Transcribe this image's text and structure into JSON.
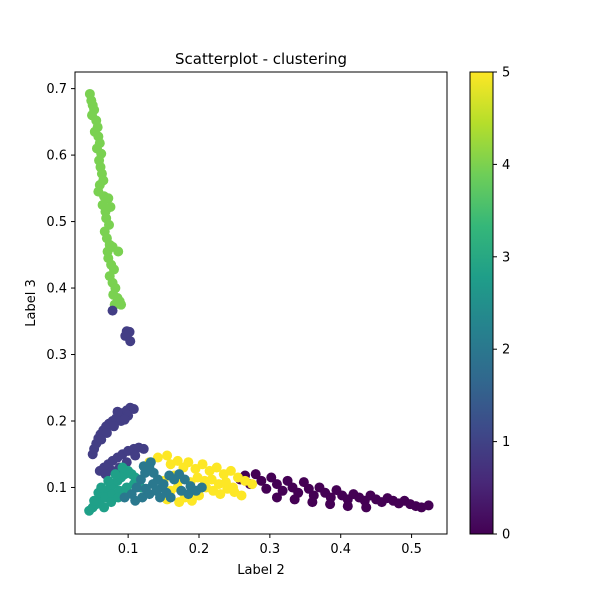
{
  "chart_data": {
    "type": "scatter",
    "title": "Scatterplot - clustering",
    "xlabel": "Label 2",
    "ylabel": "Label 3",
    "xlim": [
      0.025,
      0.55
    ],
    "ylim": [
      0.03,
      0.725
    ],
    "xticks": [
      0.1,
      0.2,
      0.3,
      0.4,
      0.5
    ],
    "xtick_labels": [
      "0.1",
      "0.2",
      "0.3",
      "0.4",
      "0.5"
    ],
    "yticks": [
      0.1,
      0.2,
      0.3,
      0.4,
      0.5,
      0.6,
      0.7
    ],
    "ytick_labels": [
      "0.1",
      "0.2",
      "0.3",
      "0.4",
      "0.5",
      "0.6",
      "0.7"
    ],
    "grid": false,
    "colorbar": {
      "colormap": "viridis",
      "range": [
        0,
        5
      ],
      "ticks": [
        0,
        1,
        2,
        3,
        4,
        5
      ],
      "tick_labels": [
        "0",
        "1",
        "2",
        "3",
        "4",
        "5"
      ],
      "stops": [
        "#440154",
        "#482878",
        "#3e4989",
        "#31688e",
        "#26828e",
        "#1f9e89",
        "#35b779",
        "#6ece58",
        "#b5de2b",
        "#fde725"
      ]
    },
    "clusters": [
      {
        "cluster": 4,
        "color": "#7ad151",
        "points": [
          [
            0.046,
            0.692
          ],
          [
            0.048,
            0.682
          ],
          [
            0.05,
            0.675
          ],
          [
            0.052,
            0.668
          ],
          [
            0.049,
            0.66
          ],
          [
            0.055,
            0.652
          ],
          [
            0.057,
            0.642
          ],
          [
            0.053,
            0.635
          ],
          [
            0.058,
            0.628
          ],
          [
            0.06,
            0.618
          ],
          [
            0.056,
            0.61
          ],
          [
            0.062,
            0.602
          ],
          [
            0.059,
            0.592
          ],
          [
            0.061,
            0.582
          ],
          [
            0.063,
            0.572
          ],
          [
            0.065,
            0.562
          ],
          [
            0.06,
            0.555
          ],
          [
            0.058,
            0.545
          ],
          [
            0.066,
            0.538
          ],
          [
            0.072,
            0.535
          ],
          [
            0.064,
            0.525
          ],
          [
            0.068,
            0.515
          ],
          [
            0.075,
            0.522
          ],
          [
            0.069,
            0.505
          ],
          [
            0.073,
            0.495
          ],
          [
            0.067,
            0.485
          ],
          [
            0.07,
            0.475
          ],
          [
            0.074,
            0.465
          ],
          [
            0.071,
            0.455
          ],
          [
            0.078,
            0.462
          ],
          [
            0.086,
            0.455
          ],
          [
            0.072,
            0.445
          ],
          [
            0.076,
            0.435
          ],
          [
            0.08,
            0.428
          ],
          [
            0.074,
            0.418
          ],
          [
            0.078,
            0.408
          ],
          [
            0.082,
            0.4
          ],
          [
            0.079,
            0.39
          ],
          [
            0.085,
            0.385
          ],
          [
            0.081,
            0.375
          ],
          [
            0.088,
            0.38
          ],
          [
            0.09,
            0.375
          ]
        ]
      },
      {
        "cluster": 1,
        "color": "#433e85",
        "points": [
          [
            0.078,
            0.366
          ],
          [
            0.098,
            0.335
          ],
          [
            0.102,
            0.334
          ],
          [
            0.096,
            0.328
          ],
          [
            0.103,
            0.32
          ],
          [
            0.05,
            0.15
          ],
          [
            0.052,
            0.158
          ],
          [
            0.055,
            0.166
          ],
          [
            0.058,
            0.174
          ],
          [
            0.061,
            0.18
          ],
          [
            0.065,
            0.186
          ],
          [
            0.069,
            0.192
          ],
          [
            0.073,
            0.196
          ],
          [
            0.078,
            0.2
          ],
          [
            0.083,
            0.204
          ],
          [
            0.088,
            0.208
          ],
          [
            0.093,
            0.212
          ],
          [
            0.098,
            0.216
          ],
          [
            0.103,
            0.22
          ],
          [
            0.108,
            0.218
          ],
          [
            0.1,
            0.208
          ],
          [
            0.09,
            0.2
          ],
          [
            0.08,
            0.192
          ],
          [
            0.07,
            0.182
          ],
          [
            0.062,
            0.172
          ],
          [
            0.085,
            0.214
          ],
          [
            0.095,
            0.202
          ],
          [
            0.06,
            0.125
          ],
          [
            0.066,
            0.13
          ],
          [
            0.072,
            0.135
          ],
          [
            0.078,
            0.14
          ],
          [
            0.085,
            0.145
          ],
          [
            0.092,
            0.15
          ],
          [
            0.1,
            0.155
          ],
          [
            0.108,
            0.158
          ],
          [
            0.115,
            0.16
          ],
          [
            0.122,
            0.158
          ],
          [
            0.11,
            0.148
          ],
          [
            0.098,
            0.138
          ],
          [
            0.088,
            0.13
          ],
          [
            0.078,
            0.125
          ],
          [
            0.068,
            0.12
          ]
        ]
      },
      {
        "cluster": 0,
        "color": "#440154",
        "points": [
          [
            0.258,
            0.112
          ],
          [
            0.265,
            0.118
          ],
          [
            0.272,
            0.105
          ],
          [
            0.28,
            0.12
          ],
          [
            0.288,
            0.11
          ],
          [
            0.295,
            0.098
          ],
          [
            0.302,
            0.115
          ],
          [
            0.31,
            0.105
          ],
          [
            0.318,
            0.095
          ],
          [
            0.325,
            0.11
          ],
          [
            0.332,
            0.1
          ],
          [
            0.34,
            0.092
          ],
          [
            0.348,
            0.108
          ],
          [
            0.355,
            0.098
          ],
          [
            0.362,
            0.088
          ],
          [
            0.37,
            0.1
          ],
          [
            0.378,
            0.092
          ],
          [
            0.386,
            0.085
          ],
          [
            0.394,
            0.096
          ],
          [
            0.402,
            0.088
          ],
          [
            0.41,
            0.082
          ],
          [
            0.418,
            0.09
          ],
          [
            0.426,
            0.085
          ],
          [
            0.434,
            0.08
          ],
          [
            0.442,
            0.088
          ],
          [
            0.45,
            0.082
          ],
          [
            0.458,
            0.078
          ],
          [
            0.466,
            0.084
          ],
          [
            0.474,
            0.08
          ],
          [
            0.482,
            0.076
          ],
          [
            0.49,
            0.08
          ],
          [
            0.498,
            0.075
          ],
          [
            0.506,
            0.072
          ],
          [
            0.514,
            0.07
          ],
          [
            0.524,
            0.073
          ],
          [
            0.31,
            0.085
          ],
          [
            0.335,
            0.082
          ],
          [
            0.36,
            0.078
          ],
          [
            0.385,
            0.075
          ],
          [
            0.41,
            0.072
          ],
          [
            0.436,
            0.07
          ]
        ]
      },
      {
        "cluster": 5,
        "color": "#fde725",
        "points": [
          [
            0.13,
            0.138
          ],
          [
            0.142,
            0.145
          ],
          [
            0.155,
            0.148
          ],
          [
            0.16,
            0.135
          ],
          [
            0.17,
            0.14
          ],
          [
            0.178,
            0.13
          ],
          [
            0.185,
            0.138
          ],
          [
            0.195,
            0.128
          ],
          [
            0.205,
            0.135
          ],
          [
            0.215,
            0.125
          ],
          [
            0.225,
            0.13
          ],
          [
            0.235,
            0.12
          ],
          [
            0.245,
            0.125
          ],
          [
            0.255,
            0.115
          ],
          [
            0.265,
            0.11
          ],
          [
            0.275,
            0.105
          ],
          [
            0.15,
            0.11
          ],
          [
            0.16,
            0.095
          ],
          [
            0.17,
            0.1
          ],
          [
            0.18,
            0.085
          ],
          [
            0.19,
            0.092
          ],
          [
            0.2,
            0.088
          ],
          [
            0.21,
            0.1
          ],
          [
            0.22,
            0.095
          ],
          [
            0.23,
            0.09
          ],
          [
            0.24,
            0.098
          ],
          [
            0.25,
            0.093
          ],
          [
            0.26,
            0.088
          ],
          [
            0.165,
            0.118
          ],
          [
            0.175,
            0.112
          ],
          [
            0.188,
            0.108
          ],
          [
            0.198,
            0.115
          ],
          [
            0.208,
            0.11
          ],
          [
            0.218,
            0.112
          ],
          [
            0.228,
            0.105
          ],
          [
            0.238,
            0.108
          ],
          [
            0.248,
            0.1
          ],
          [
            0.155,
            0.082
          ],
          [
            0.172,
            0.078
          ],
          [
            0.19,
            0.08
          ]
        ]
      },
      {
        "cluster": 3,
        "color": "#1fa088",
        "points": [
          [
            0.045,
            0.065
          ],
          [
            0.05,
            0.07
          ],
          [
            0.055,
            0.075
          ],
          [
            0.06,
            0.08
          ],
          [
            0.065,
            0.088
          ],
          [
            0.07,
            0.095
          ],
          [
            0.075,
            0.1
          ],
          [
            0.08,
            0.105
          ],
          [
            0.085,
            0.11
          ],
          [
            0.09,
            0.115
          ],
          [
            0.095,
            0.12
          ],
          [
            0.1,
            0.125
          ],
          [
            0.105,
            0.12
          ],
          [
            0.11,
            0.115
          ],
          [
            0.058,
            0.092
          ],
          [
            0.068,
            0.085
          ],
          [
            0.078,
            0.09
          ],
          [
            0.088,
            0.095
          ],
          [
            0.098,
            0.1
          ],
          [
            0.108,
            0.105
          ],
          [
            0.072,
            0.11
          ],
          [
            0.082,
            0.12
          ],
          [
            0.092,
            0.13
          ],
          [
            0.062,
            0.1
          ],
          [
            0.052,
            0.08
          ],
          [
            0.066,
            0.07
          ],
          [
            0.076,
            0.078
          ],
          [
            0.086,
            0.085
          ],
          [
            0.096,
            0.09
          ],
          [
            0.118,
            0.1
          ]
        ]
      },
      {
        "cluster": 2,
        "color": "#2a788e",
        "points": [
          [
            0.095,
            0.085
          ],
          [
            0.105,
            0.09
          ],
          [
            0.112,
            0.1
          ],
          [
            0.118,
            0.112
          ],
          [
            0.124,
            0.122
          ],
          [
            0.13,
            0.13
          ],
          [
            0.136,
            0.122
          ],
          [
            0.142,
            0.112
          ],
          [
            0.148,
            0.1
          ],
          [
            0.154,
            0.092
          ],
          [
            0.16,
            0.085
          ],
          [
            0.11,
            0.08
          ],
          [
            0.12,
            0.085
          ],
          [
            0.13,
            0.09
          ],
          [
            0.14,
            0.095
          ],
          [
            0.15,
            0.105
          ],
          [
            0.165,
            0.112
          ],
          [
            0.172,
            0.12
          ],
          [
            0.18,
            0.112
          ],
          [
            0.188,
            0.102
          ],
          [
            0.196,
            0.095
          ],
          [
            0.204,
            0.1
          ],
          [
            0.122,
            0.132
          ],
          [
            0.132,
            0.138
          ],
          [
            0.145,
            0.085
          ],
          [
            0.135,
            0.105
          ],
          [
            0.125,
            0.098
          ],
          [
            0.175,
            0.095
          ],
          [
            0.185,
            0.09
          ],
          [
            0.158,
            0.118
          ]
        ]
      }
    ]
  }
}
